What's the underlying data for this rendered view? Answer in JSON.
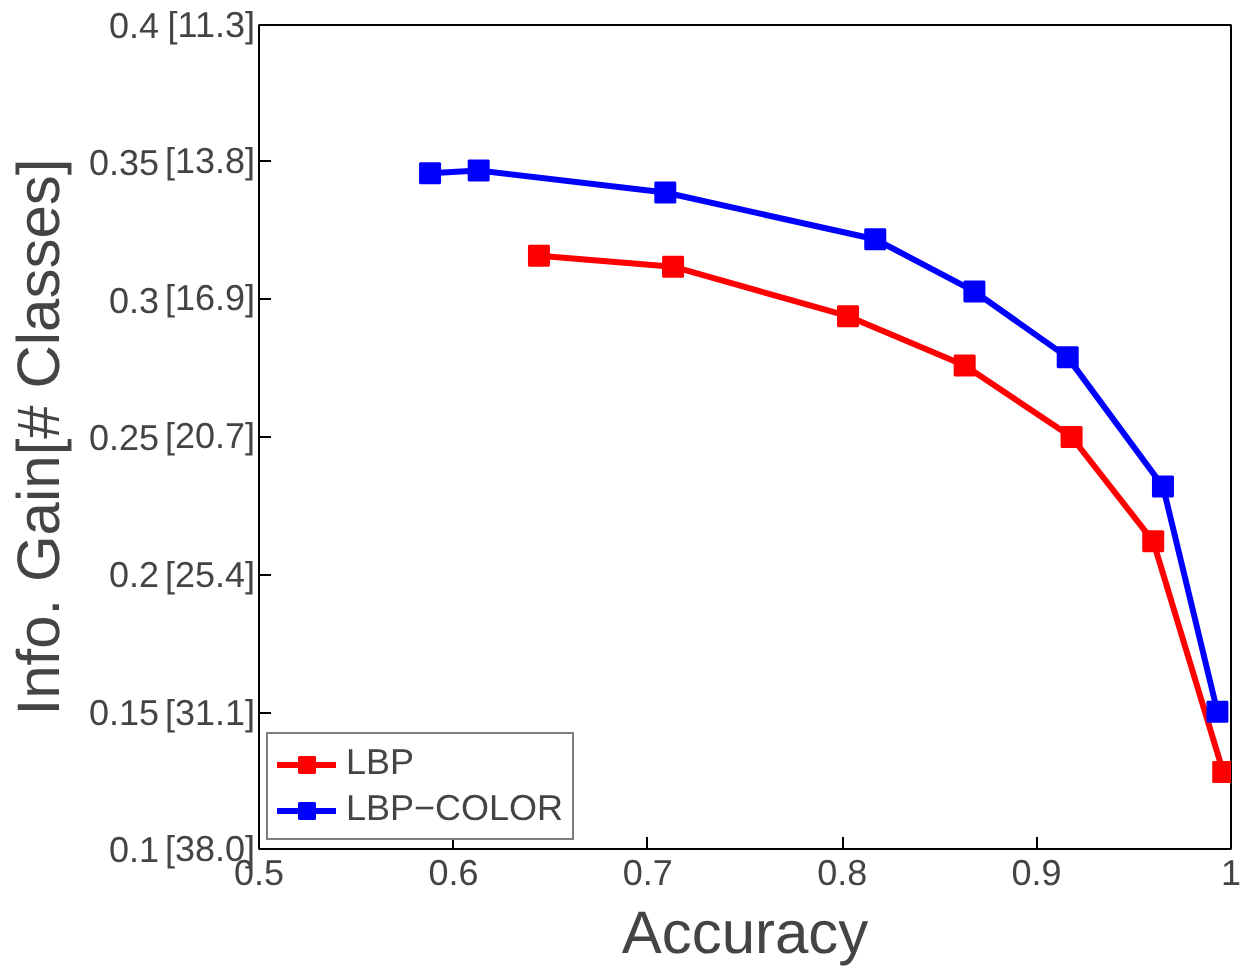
{
  "chart_data": {
    "type": "line",
    "xlabel": "Accuracy",
    "ylabel": "Info. Gain[# Classes]",
    "xlim": [
      0.5,
      1
    ],
    "xticks": [
      0.5,
      0.6,
      0.7,
      0.8,
      0.9,
      {
        "value": 1,
        "label": "1"
      }
    ],
    "ylim": [
      0.1,
      0.4
    ],
    "yticks": [
      0.1,
      0.15,
      0.2,
      0.25,
      0.3,
      0.35,
      0.4
    ],
    "y2lim": [
      38.0,
      11.3
    ],
    "log": "y2",
    "y2ticks": [
      {
        "value": 38.0,
        "label": "[38.0]"
      },
      {
        "value": 31.1,
        "label": "[31.1]"
      },
      {
        "value": 25.4,
        "label": "[25.4]"
      },
      {
        "value": 20.7,
        "label": "[20.7]"
      },
      {
        "value": 16.9,
        "label": "[16.9]"
      },
      {
        "value": 13.8,
        "label": "[13.8]"
      },
      {
        "value": 11.3,
        "label": "[11.3]"
      }
    ],
    "grid": false,
    "legend": "bottom left",
    "marker": "square",
    "line_style": "solid",
    "series": [
      {
        "name": "LBP",
        "color": "#ff0000",
        "x": [
          0.644,
          0.713,
          0.803,
          0.863,
          0.918,
          0.96,
          0.996
        ],
        "values": [
          0.316,
          0.312,
          0.294,
          0.276,
          0.25,
          0.212,
          0.128
        ]
      },
      {
        "name": "LBP−COLOR",
        "color": "#0000ff",
        "x": [
          0.588,
          0.613,
          0.709,
          0.817,
          0.868,
          0.916,
          0.965,
          0.993
        ],
        "values": [
          0.346,
          0.347,
          0.339,
          0.322,
          0.303,
          0.279,
          0.232,
          0.15
        ]
      }
    ]
  }
}
